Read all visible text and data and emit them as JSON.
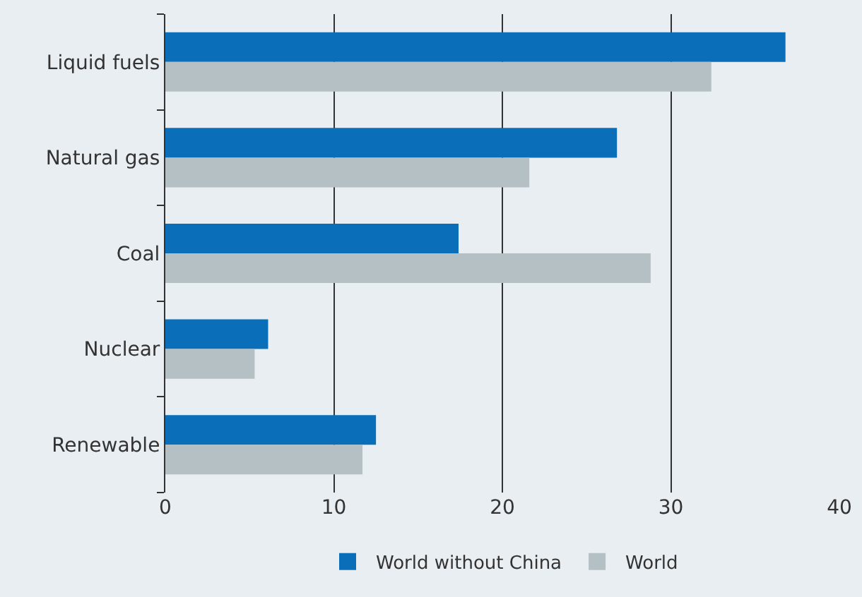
{
  "chart_data": {
    "type": "bar",
    "orientation": "horizontal",
    "categories": [
      "Liquid fuels",
      "Natural gas",
      "Coal",
      "Nuclear",
      "Renewable"
    ],
    "series": [
      {
        "name": "World without China",
        "color": "#0a6fb8",
        "values": [
          36.8,
          26.8,
          17.4,
          6.1,
          12.5
        ]
      },
      {
        "name": "World",
        "color": "#b4c0c4",
        "values": [
          32.4,
          21.6,
          28.8,
          5.3,
          11.7
        ]
      }
    ],
    "xlim": [
      0,
      40
    ],
    "xticks": [
      0,
      10,
      20,
      30,
      40
    ],
    "grid": "x",
    "legend": "bottom"
  }
}
